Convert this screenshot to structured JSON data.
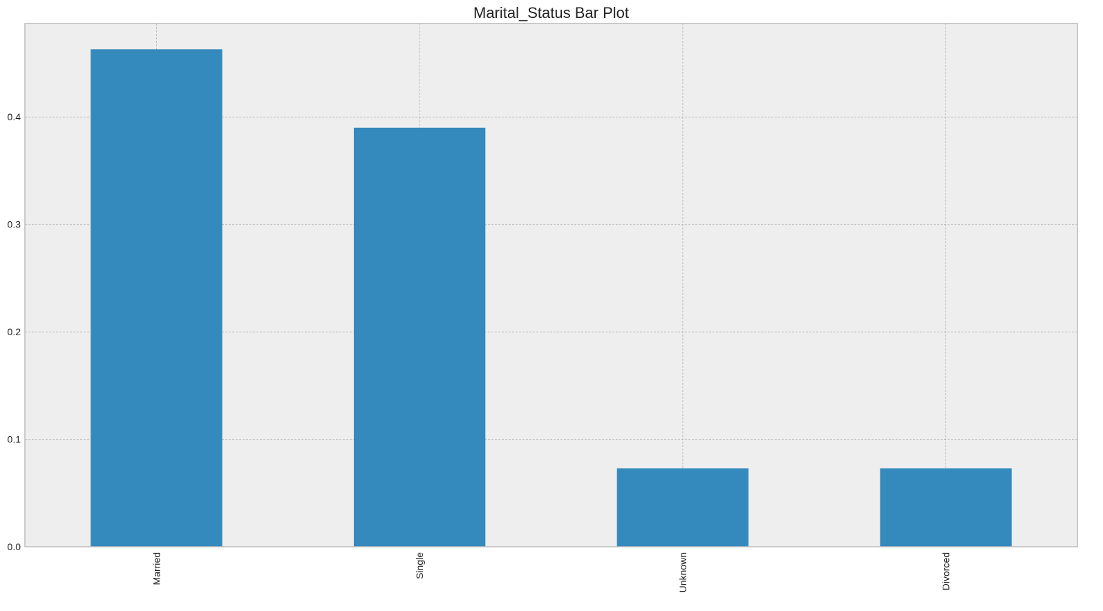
{
  "chart_data": {
    "type": "bar",
    "title": "Marital_Status Bar Plot",
    "xlabel": "",
    "ylabel": "",
    "categories": [
      "Married",
      "Single",
      "Unknown",
      "Divorced"
    ],
    "values": [
      0.463,
      0.39,
      0.073,
      0.073
    ],
    "ylim": [
      0,
      0.487
    ],
    "y_ticks": [
      0.0,
      0.1,
      0.2,
      0.3,
      0.4
    ],
    "y_tick_labels": [
      "0.0",
      "0.1",
      "0.2",
      "0.3",
      "0.4"
    ],
    "x_tick_rotation": "vertical",
    "grid": true,
    "legend": "none",
    "colors": {
      "bar": "#348abd",
      "plot_background": "#eeeeee",
      "grid": "#b0b0b0",
      "frame": "#bcbcbc",
      "text": "#222222"
    }
  }
}
